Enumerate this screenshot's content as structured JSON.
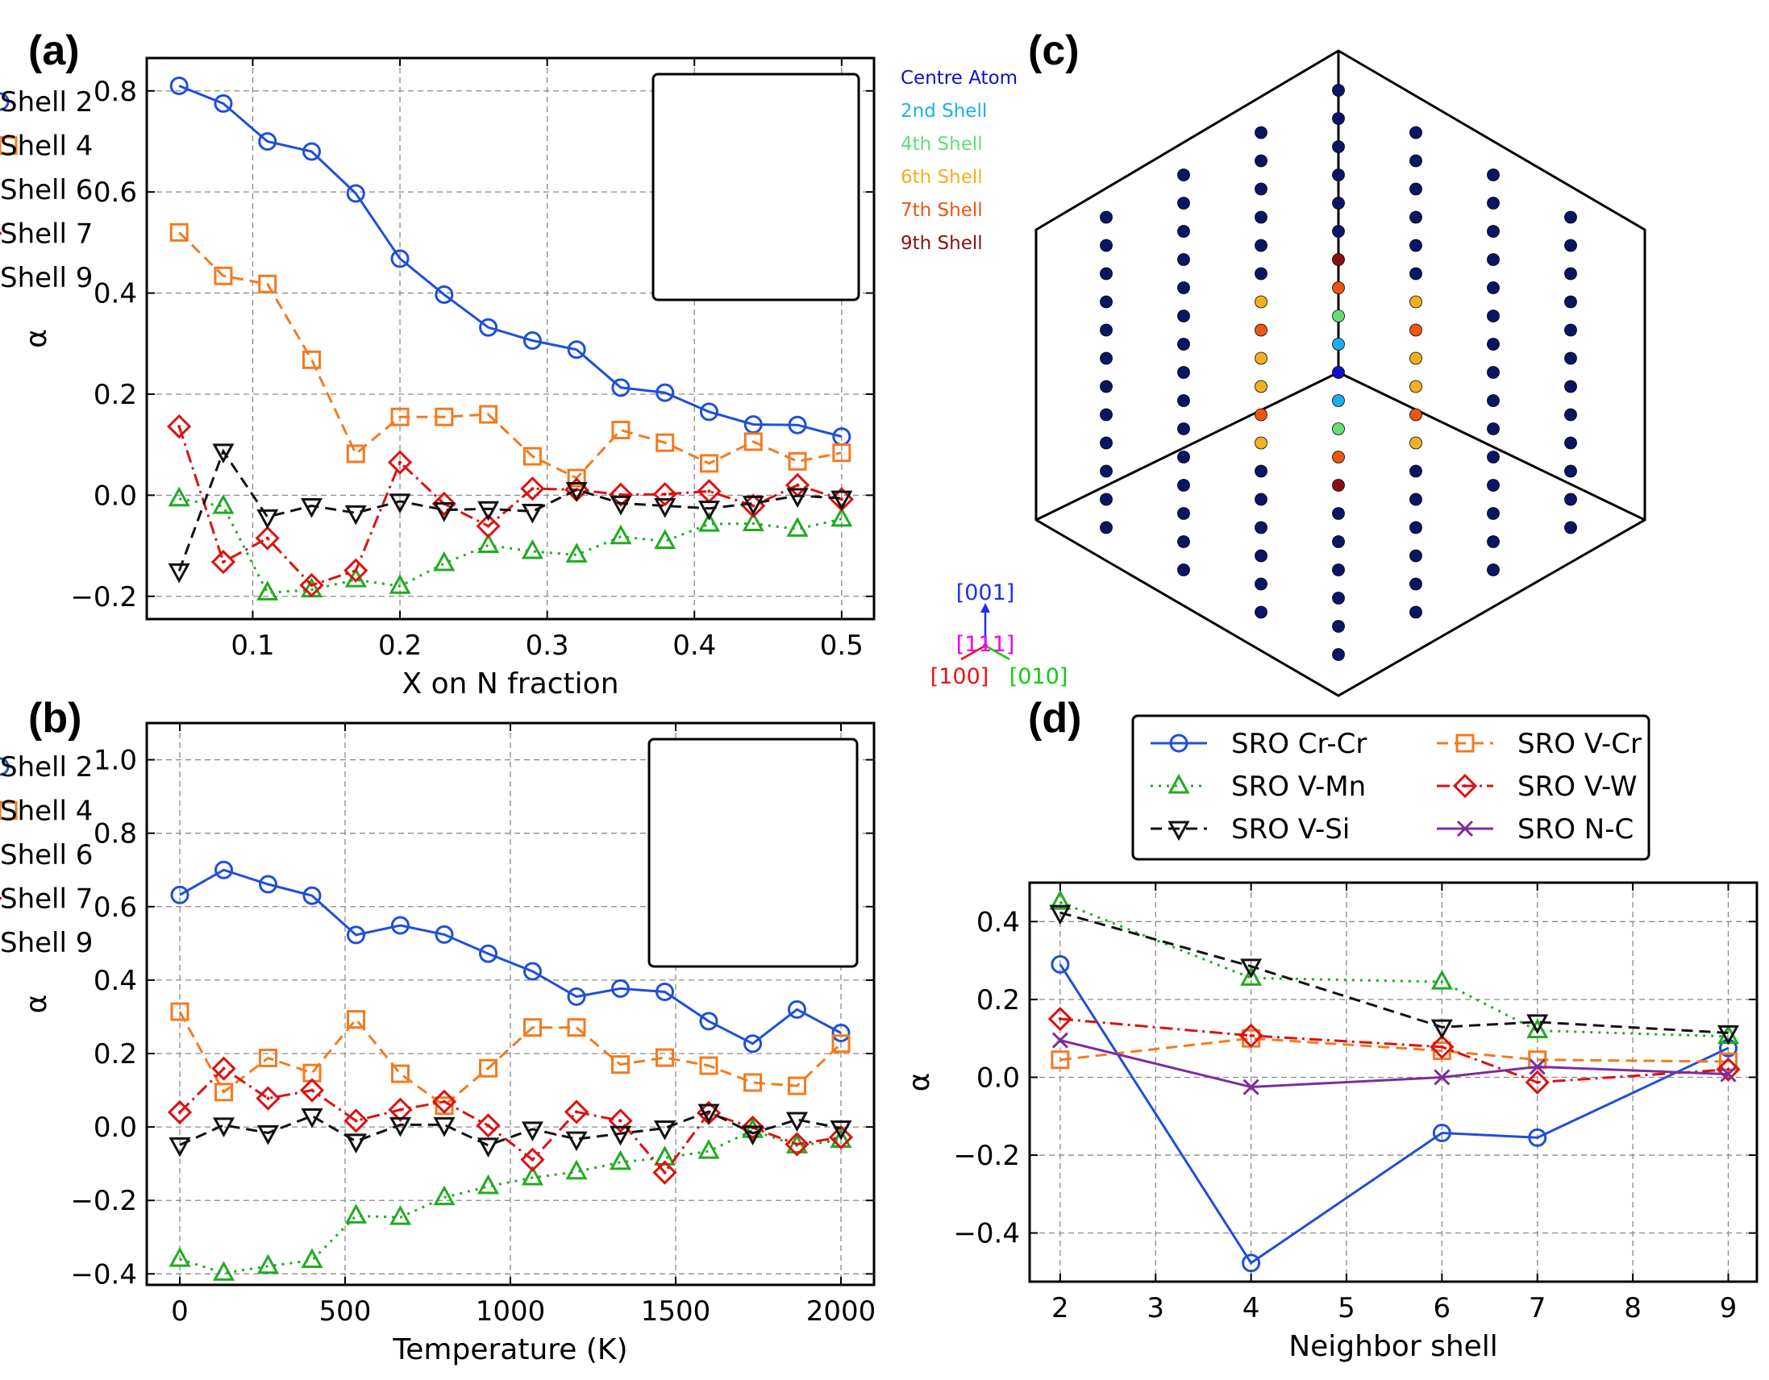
{
  "panels": {
    "a": "(a)",
    "b": "(b)",
    "c": "(c)",
    "d": "(d)"
  },
  "colors": {
    "shell2": "#1f4fd8",
    "shell4": "#f47a1f",
    "shell6": "#22aa22",
    "shell7": "#dd1111",
    "shell9": "#111111",
    "nc": "#7b2d9e",
    "atom_far": "#0b1566"
  },
  "chart_data": [
    {
      "id": "a",
      "type": "line",
      "title": "",
      "xlabel": "X on N fraction",
      "ylabel": "α",
      "xlim": [
        0.028,
        0.522
      ],
      "ylim": [
        -0.245,
        0.865
      ],
      "xticks": [
        "0.1",
        "0.2",
        "0.3",
        "0.4",
        "0.5"
      ],
      "yticks": [
        "−0.2",
        "0.0",
        "0.2",
        "0.4",
        "0.6",
        "0.8"
      ],
      "x": [
        0.05,
        0.08,
        0.11,
        0.14,
        0.17,
        0.2,
        0.23,
        0.26,
        0.29,
        0.32,
        0.35,
        0.38,
        0.41,
        0.44,
        0.47,
        0.5
      ],
      "legend_position": "top-right",
      "series": [
        {
          "name": "Shell 2",
          "values": [
            0.81,
            0.775,
            0.7,
            0.68,
            0.597,
            0.468,
            0.397,
            0.332,
            0.306,
            0.288,
            0.213,
            0.203,
            0.165,
            0.14,
            0.139,
            0.116
          ]
        },
        {
          "name": "Shell 4",
          "values": [
            0.52,
            0.434,
            0.418,
            0.268,
            0.082,
            0.155,
            0.155,
            0.16,
            0.077,
            0.034,
            0.129,
            0.104,
            0.063,
            0.106,
            0.067,
            0.084
          ]
        },
        {
          "name": "Shell 6",
          "values": [
            -0.007,
            -0.022,
            -0.193,
            -0.187,
            -0.167,
            -0.18,
            -0.135,
            -0.099,
            -0.111,
            -0.118,
            -0.082,
            -0.091,
            -0.057,
            -0.056,
            -0.067,
            -0.047
          ]
        },
        {
          "name": "Shell 7",
          "values": [
            0.136,
            -0.132,
            -0.085,
            -0.178,
            -0.149,
            0.065,
            -0.017,
            -0.061,
            0.013,
            0.011,
            0.001,
            0.002,
            0.008,
            -0.021,
            0.02,
            -0.008
          ]
        },
        {
          "name": "Shell 9",
          "values": [
            -0.15,
            0.087,
            -0.043,
            -0.021,
            -0.035,
            -0.012,
            -0.029,
            -0.027,
            -0.032,
            0.011,
            -0.016,
            -0.021,
            -0.026,
            -0.016,
            -0.001,
            -0.006
          ]
        }
      ]
    },
    {
      "id": "b",
      "type": "line",
      "title": "",
      "xlabel": "Temperature (K)",
      "ylabel": "α",
      "xlim": [
        -100,
        2100
      ],
      "ylim": [
        -0.43,
        1.1
      ],
      "xticks": [
        "0",
        "500",
        "1000",
        "1500",
        "2000"
      ],
      "yticks": [
        "−0.4",
        "−0.2",
        "0.0",
        "0.2",
        "0.4",
        "0.6",
        "0.8",
        "1.0"
      ],
      "x": [
        0,
        133,
        267,
        400,
        533,
        667,
        800,
        933,
        1067,
        1200,
        1333,
        1467,
        1600,
        1733,
        1867,
        2000
      ],
      "legend_position": "top-right",
      "series": [
        {
          "name": "Shell 2",
          "values": [
            0.632,
            0.7,
            0.661,
            0.63,
            0.523,
            0.549,
            0.524,
            0.472,
            0.424,
            0.355,
            0.377,
            0.368,
            0.288,
            0.227,
            0.32,
            0.256
          ]
        },
        {
          "name": "Shell 4",
          "values": [
            0.314,
            0.095,
            0.188,
            0.147,
            0.293,
            0.145,
            0.058,
            0.16,
            0.271,
            0.271,
            0.17,
            0.189,
            0.167,
            0.121,
            0.112,
            0.227
          ]
        },
        {
          "name": "Shell 6",
          "values": [
            -0.36,
            -0.398,
            -0.379,
            -0.363,
            -0.242,
            -0.246,
            -0.192,
            -0.162,
            -0.138,
            -0.122,
            -0.096,
            -0.084,
            -0.066,
            -0.009,
            -0.051,
            -0.036
          ]
        },
        {
          "name": "Shell 7",
          "values": [
            0.04,
            0.159,
            0.078,
            0.1,
            0.017,
            0.047,
            0.069,
            0.004,
            -0.089,
            0.041,
            0.017,
            -0.124,
            0.038,
            -0.002,
            -0.047,
            -0.028
          ]
        },
        {
          "name": "Shell 9",
          "values": [
            -0.049,
            0.005,
            -0.016,
            0.03,
            -0.039,
            0.006,
            0.006,
            -0.05,
            -0.006,
            -0.033,
            -0.018,
            -0.003,
            0.042,
            -0.017,
            0.02,
            -0.003
          ]
        }
      ]
    },
    {
      "id": "d",
      "type": "line",
      "title": "",
      "xlabel": "Neighbor shell",
      "ylabel": "α",
      "xlim": [
        1.68,
        9.3
      ],
      "ylim": [
        -0.525,
        0.5
      ],
      "xticks": [
        "2",
        "3",
        "4",
        "5",
        "6",
        "7",
        "8",
        "9"
      ],
      "yticks": [
        "−0.4",
        "−0.2",
        "0.0",
        "0.2",
        "0.4"
      ],
      "x": [
        2,
        4,
        6,
        7,
        9
      ],
      "legend_position": "above",
      "series": [
        {
          "name": "SRO Cr-Cr",
          "values": [
            0.29,
            -0.477,
            -0.143,
            -0.155,
            0.075
          ]
        },
        {
          "name": "SRO V-Cr",
          "values": [
            0.045,
            0.1,
            0.068,
            0.045,
            0.04
          ]
        },
        {
          "name": "SRO V-Mn",
          "values": [
            0.45,
            0.255,
            0.245,
            0.12,
            0.105
          ]
        },
        {
          "name": "SRO V-W",
          "values": [
            0.15,
            0.107,
            0.078,
            -0.013,
            0.02
          ]
        },
        {
          "name": "SRO V-Si",
          "values": [
            0.423,
            0.285,
            0.129,
            0.142,
            0.114
          ]
        },
        {
          "name": "SRO N-C",
          "values": [
            0.095,
            -0.025,
            0.0,
            0.027,
            0.008
          ]
        }
      ]
    }
  ],
  "panel_c": {
    "legend": [
      {
        "label": "Centre Atom",
        "color": "#1010c8"
      },
      {
        "label": "2nd Shell",
        "color": "#1ab0ee"
      },
      {
        "label": "4th Shell",
        "color": "#66dd77"
      },
      {
        "label": "6th Shell",
        "color": "#f0b020"
      },
      {
        "label": "7th Shell",
        "color": "#ee5511"
      },
      {
        "label": "9th Shell",
        "color": "#8b1010"
      }
    ],
    "directions": [
      {
        "label": "[001]",
        "color": "#1e2ef0"
      },
      {
        "label": "[111]",
        "color": "#ee00ee"
      },
      {
        "label": "[100]",
        "color": "#ee1111"
      },
      {
        "label": "[010]",
        "color": "#11cc11"
      }
    ]
  }
}
